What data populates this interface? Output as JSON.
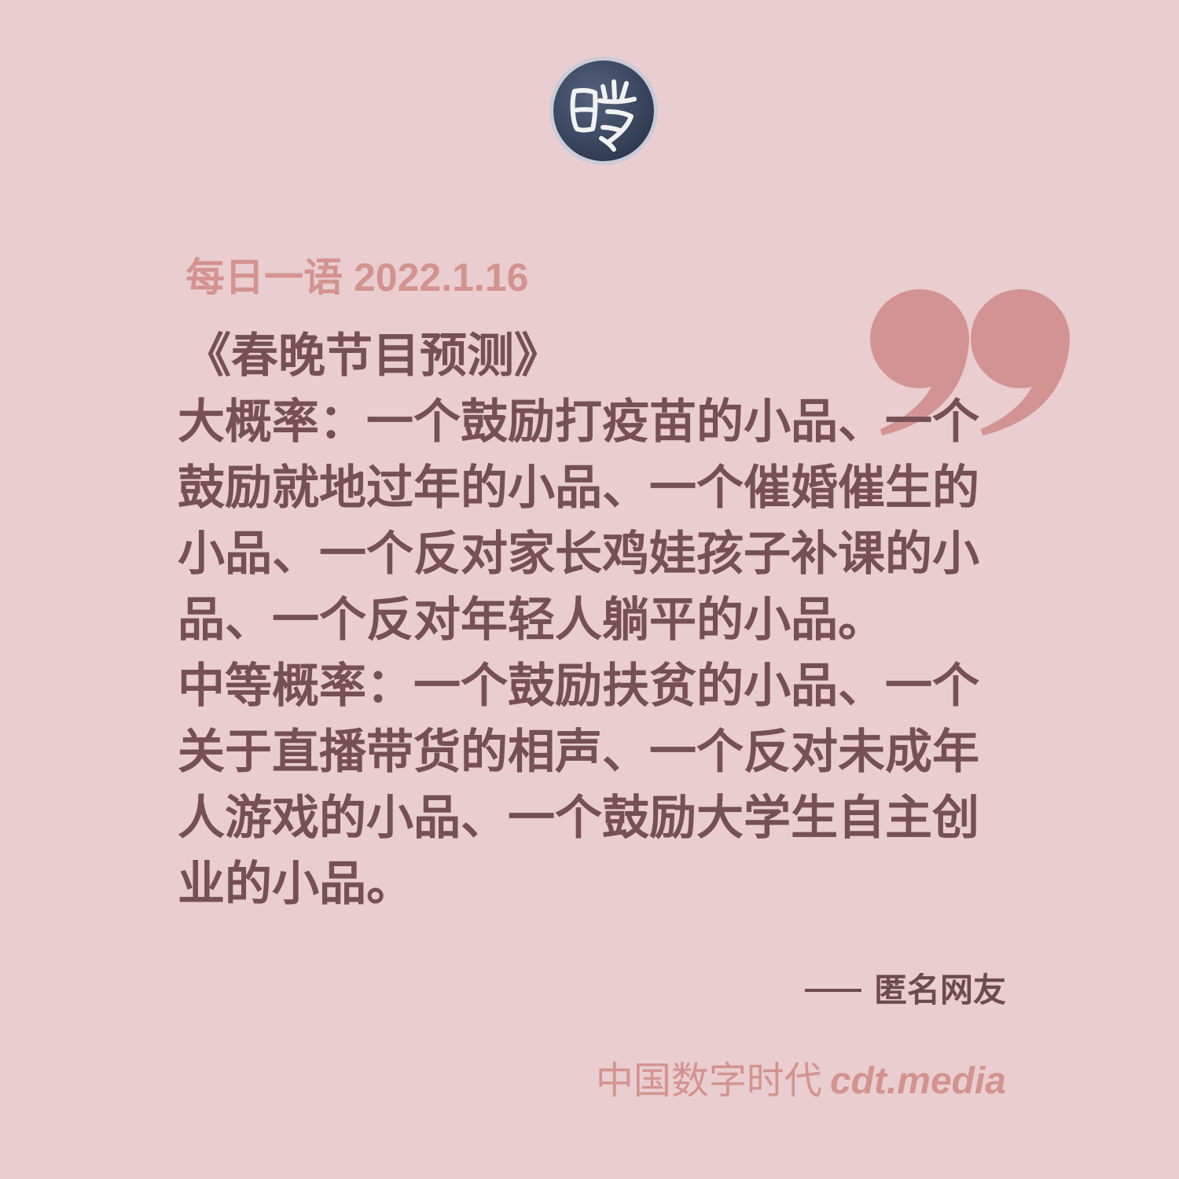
{
  "header": {
    "title": "每日一语",
    "date": "2022.1.16"
  },
  "quote": {
    "title": "《春晚节目预测》",
    "lines": [
      "大概率：一个鼓励打疫苗的小品、一个",
      "鼓励就地过年的小品、一个催婚催生的",
      "小品、一个反对家长鸡娃孩子补课的小",
      "品、一个反对年轻人躺平的小品。",
      "中等概率：一个鼓励扶贫的小品、一个",
      "关于直播带货的相声、一个反对未成年",
      "人游戏的小品、一个鼓励大学生自主创",
      "业的小品。"
    ]
  },
  "attribution": {
    "author": "匿名网友"
  },
  "footer": {
    "brand": "中国数字时代",
    "url": "cdt.media"
  },
  "colors": {
    "background": "#e9cdd0",
    "accent": "#d4938f",
    "quote_mark": "#d39393",
    "body_text": "#765054",
    "logo_bg": "#3e4a66"
  }
}
